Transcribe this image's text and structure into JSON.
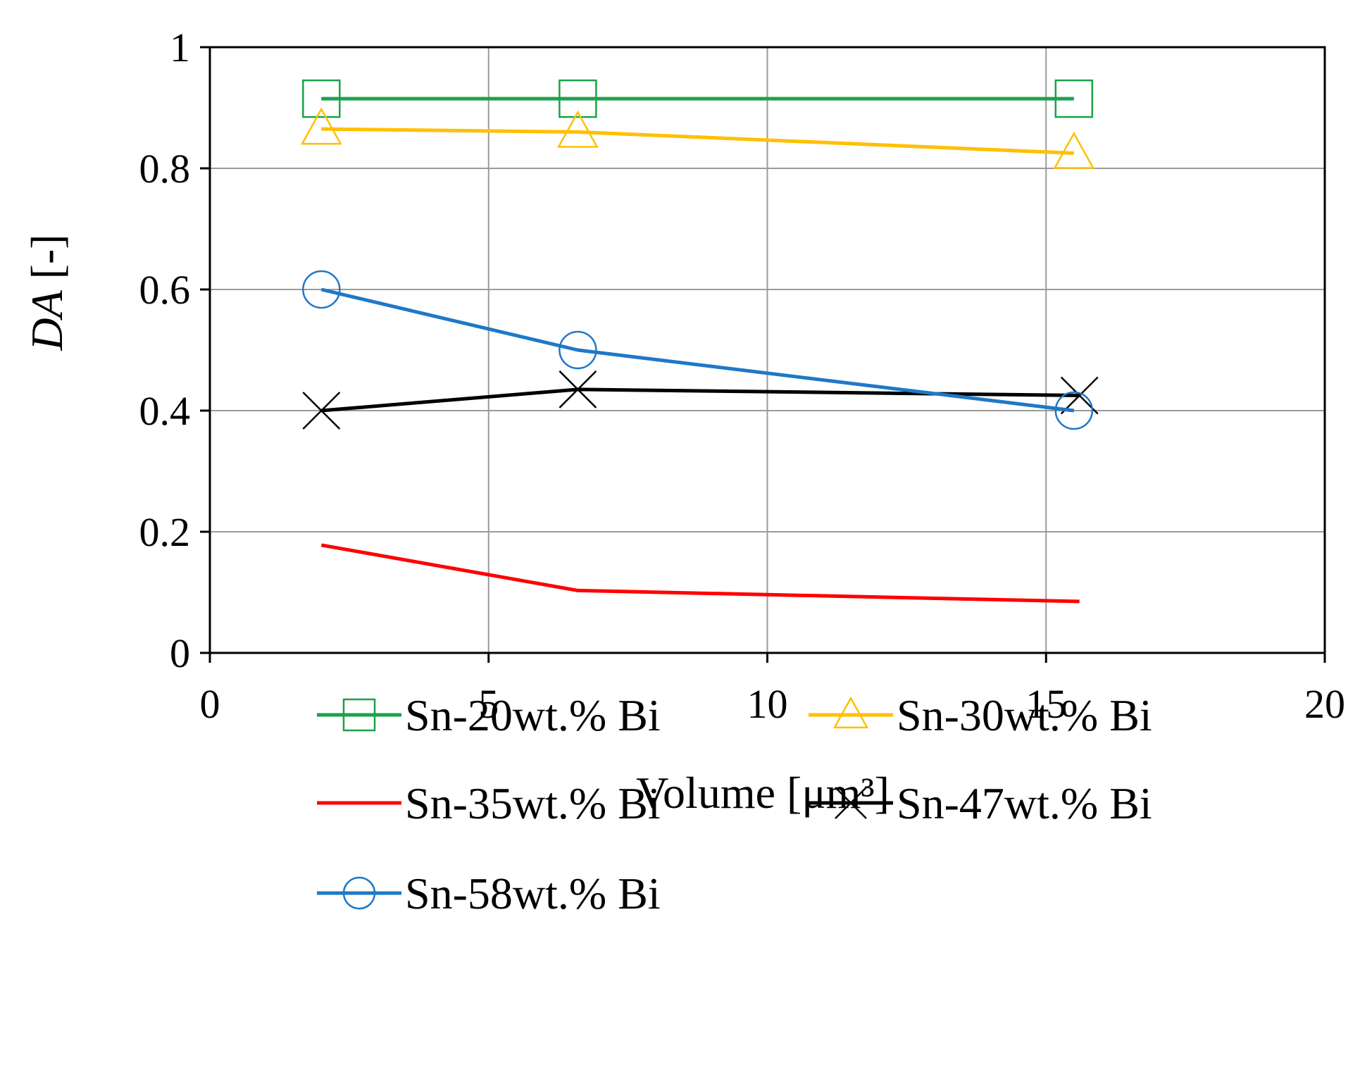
{
  "chart_data": {
    "type": "line",
    "title": "",
    "xlabel": "Volume [μm³]",
    "ylabel_italic": "DA",
    "ylabel_rest": " [-]",
    "xlim": [
      0,
      20
    ],
    "ylim": [
      0,
      1
    ],
    "x_ticks": [
      0,
      5,
      10,
      15,
      20
    ],
    "y_ticks": [
      0,
      0.2,
      0.4,
      0.6,
      0.8,
      1
    ],
    "x_tick_labels": [
      "0",
      "5",
      "10",
      "15",
      "20"
    ],
    "y_tick_labels": [
      "0",
      "0.2",
      "0.4",
      "0.6",
      "0.8",
      "1"
    ],
    "grid": true,
    "legend_position": "bottom",
    "series": [
      {
        "name": "Sn-20wt.% Bi",
        "color": "#1aa24a",
        "marker": "square",
        "x": [
          2.0,
          6.6,
          15.5
        ],
        "y": [
          0.915,
          0.915,
          0.915
        ]
      },
      {
        "name": "Sn-30wt.% Bi",
        "color": "#ffc000",
        "marker": "triangle",
        "x": [
          2.0,
          6.6,
          15.5
        ],
        "y": [
          0.865,
          0.86,
          0.825
        ]
      },
      {
        "name": "Sn-35wt.% Bi",
        "color": "#ff0000",
        "marker": "none",
        "x": [
          2.0,
          6.6,
          15.6
        ],
        "y": [
          0.178,
          0.103,
          0.085
        ]
      },
      {
        "name": "Sn-47wt.% Bi",
        "color": "#000000",
        "marker": "x",
        "x": [
          2.0,
          6.6,
          15.6
        ],
        "y": [
          0.4,
          0.435,
          0.425
        ]
      },
      {
        "name": "Sn-58wt.% Bi",
        "color": "#1f78c8",
        "marker": "circle",
        "x": [
          2.0,
          6.6,
          15.5
        ],
        "y": [
          0.6,
          0.5,
          0.4
        ]
      }
    ]
  }
}
